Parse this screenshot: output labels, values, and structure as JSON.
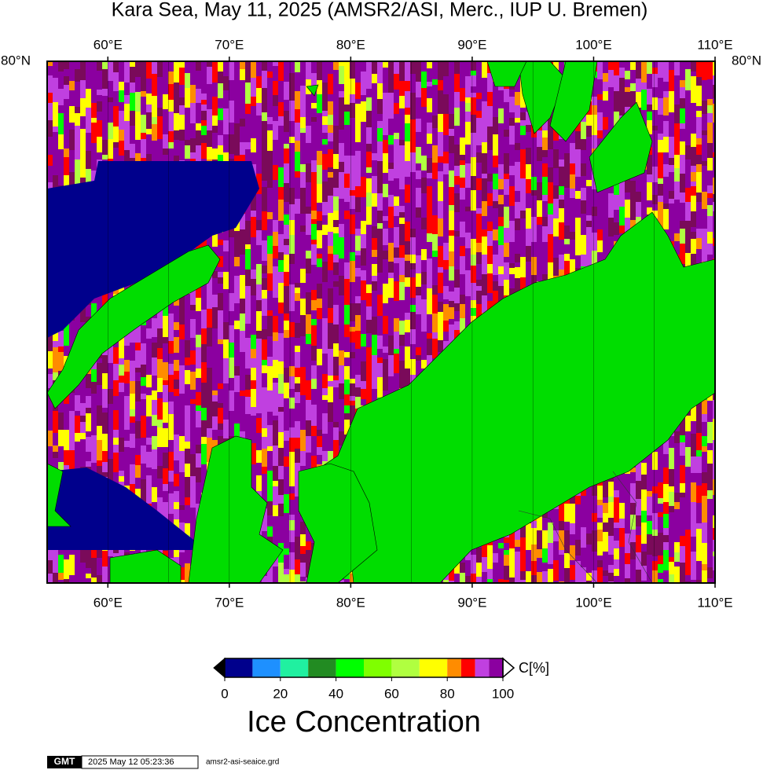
{
  "title": "Kara Sea, May 11, 2025 (AMSR2/ASI, Merc., IUP U. Bremen)",
  "map": {
    "lonlim": [
      55,
      110
    ],
    "lon_ticks": [
      {
        "value": 60,
        "label": "60°E"
      },
      {
        "value": 70,
        "label": "70°E"
      },
      {
        "value": 80,
        "label": "80°E"
      },
      {
        "value": 90,
        "label": "90°E"
      },
      {
        "value": 100,
        "label": "100°E"
      },
      {
        "value": 110,
        "label": "110°E"
      }
    ],
    "lat_label": "80°N"
  },
  "colorbar": {
    "title": "Ice Concentration",
    "unit": "C[%]",
    "lim": [
      0,
      100
    ],
    "ticks": [
      0,
      20,
      40,
      60,
      80,
      100
    ],
    "levels": [
      0,
      10,
      20,
      30,
      40,
      50,
      60,
      70,
      80,
      85,
      90,
      95,
      100
    ],
    "colors": [
      "#00008c",
      "#1e90ff",
      "#20f0a0",
      "#228b22",
      "#00ff00",
      "#7fff00",
      "#b0ff40",
      "#ffff00",
      "#ff8c00",
      "#ff0000",
      "#c040e0",
      "#8b00a0"
    ]
  },
  "footer": {
    "logo": "GMT",
    "timestamp": "2025 May 12 05:23:36",
    "file": "amsr2-asi-seaice.grd"
  }
}
